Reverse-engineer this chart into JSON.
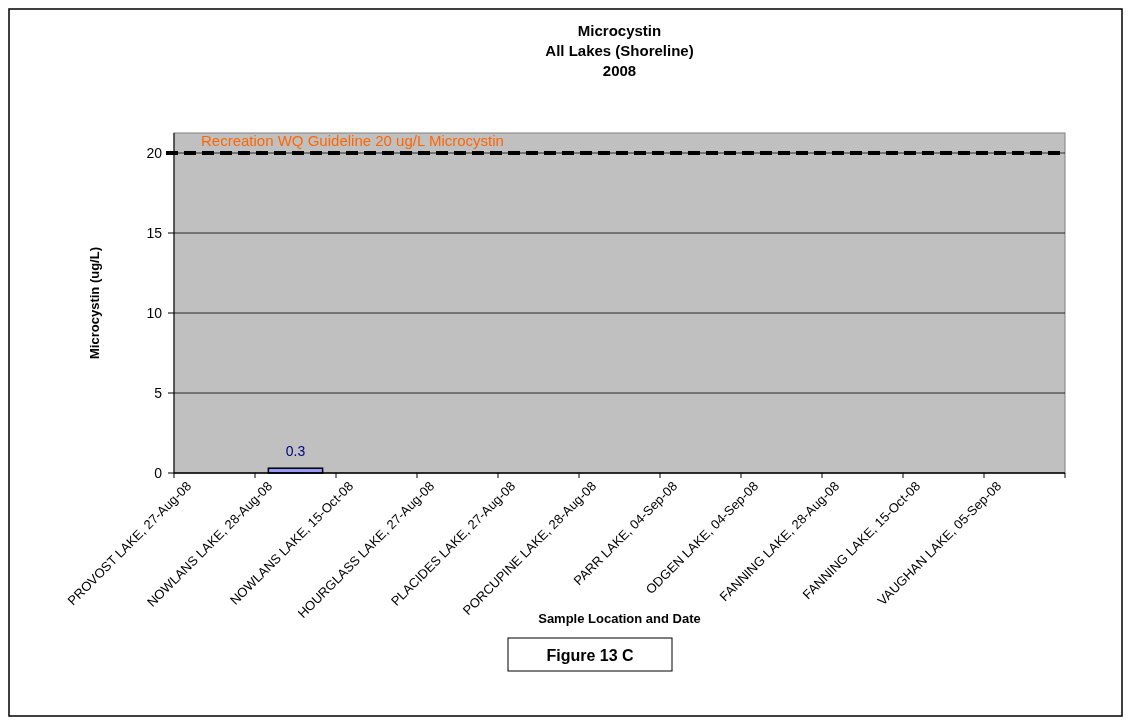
{
  "chart_data": {
    "type": "bar",
    "title": "Microcystin\nAll Lakes (Shoreline)\n2008",
    "xlabel": "Sample Location and Date",
    "ylabel": "Microcystin (ug/L)",
    "categories": [
      "PROVOST LAKE, 27-Aug-08",
      "NOWLANS LAKE, 28-Aug-08",
      "NOWLANS LAKE, 15-Oct-08",
      "HOURGLASS LAKE, 27-Aug-08",
      "PLACIDES LAKE, 27-Aug-08",
      "PORCUPINE LAKE, 28-Aug-08",
      "PARR LAKE, 04-Sep-08",
      "ODGEN LAKE, 04-Sep-08",
      "FANNING LAKE, 28-Aug-08",
      "FANNING LAKE, 15-Oct-08",
      "VAUGHAN LAKE, 05-Sep-08"
    ],
    "values": [
      null,
      0.3,
      null,
      null,
      null,
      null,
      null,
      null,
      null,
      null,
      null
    ],
    "color": "#9999ff",
    "ylim": [
      0,
      21.25
    ],
    "yticks": [
      0,
      5,
      10,
      15,
      20
    ],
    "grid": "y",
    "data_labels": true,
    "ref_lines": [
      {
        "axis": "y",
        "value": 20,
        "label": "Recreation WQ Guideline  20 ug/L Microcystin",
        "color": "#000000",
        "line_style": "dashed"
      }
    ],
    "annotations": [
      "Figure 13 C"
    ]
  }
}
